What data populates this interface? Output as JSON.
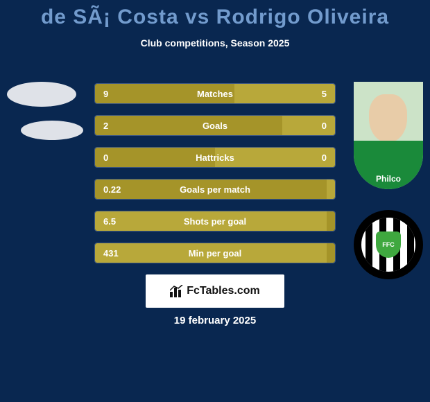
{
  "title": "de SÃ¡ Costa vs Rodrigo Oliveira",
  "subtitle": "Club competitions, Season 2025",
  "date": "19 february 2025",
  "branding_text": "FcTables.com",
  "colors": {
    "background": "#092750",
    "title": "#729bcd",
    "text": "#ffffff",
    "row_bg": "#1a355f",
    "row_border": "#3e5880",
    "bar_olive_dark": "#a59429",
    "bar_olive_light": "#b8a83a",
    "branding_bg": "#ffffff",
    "branding_text": "#111111"
  },
  "right_player": {
    "shirt_sponsor": "Philco",
    "shirt_brand": "P",
    "club_badge_text": "FFC"
  },
  "stats": [
    {
      "label": "Matches",
      "left_value": "9",
      "right_value": "5",
      "left_w": 58,
      "right_w": 42,
      "left_color": "#a59429",
      "right_color": "#b8a83a"
    },
    {
      "label": "Goals",
      "left_value": "2",
      "right_value": "0",
      "left_w": 78,
      "right_w": 22,
      "left_color": "#a59429",
      "right_color": "#b8a83a"
    },
    {
      "label": "Hattricks",
      "left_value": "0",
      "right_value": "0",
      "left_w": 50,
      "right_w": 50,
      "left_color": "#a59429",
      "right_color": "#b8a83a"
    },
    {
      "label": "Goals per match",
      "left_value": "0.22",
      "right_value": "",
      "left_w": 100,
      "right_w": 0,
      "left_color": "#a59429",
      "right_color": "#b8a83a"
    },
    {
      "label": "Shots per goal",
      "left_value": "6.5",
      "right_value": "",
      "left_w": 100,
      "right_w": 0,
      "left_color": "#b8a83a",
      "right_color": "#a59429"
    },
    {
      "label": "Min per goal",
      "left_value": "431",
      "right_value": "",
      "left_w": 100,
      "right_w": 0,
      "left_color": "#b8a83a",
      "right_color": "#a59429"
    }
  ]
}
